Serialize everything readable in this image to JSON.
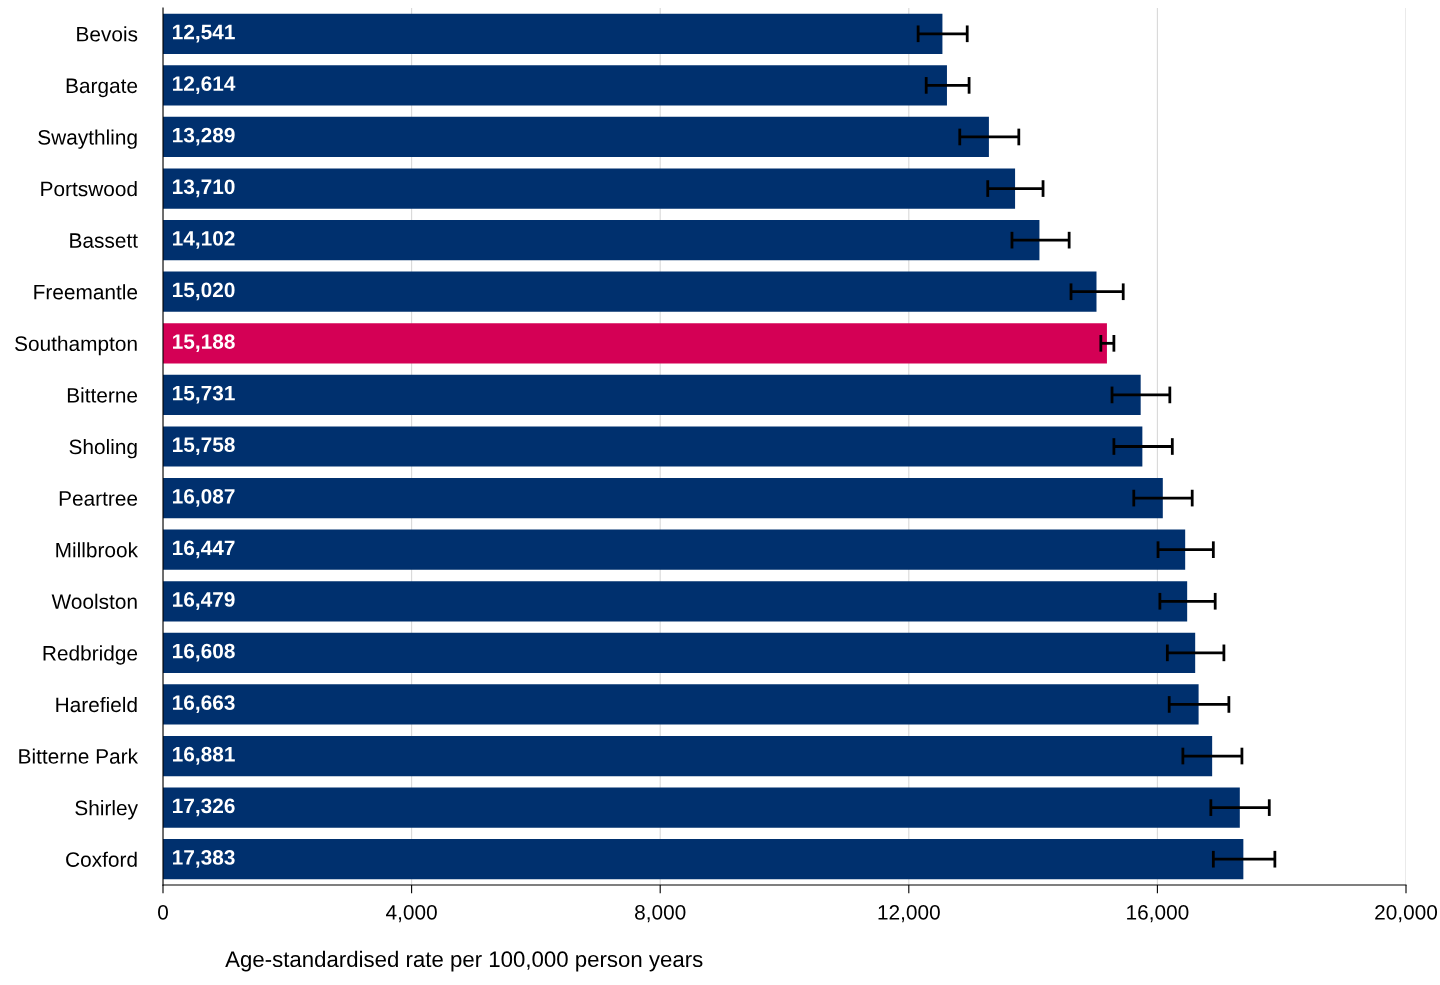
{
  "chart_data": {
    "type": "bar",
    "orientation": "horizontal",
    "xlabel": "Age-standardised rate per 100,000 person years",
    "categories": [
      "Bevois",
      "Bargate",
      "Swaythling",
      "Portswood",
      "Bassett",
      "Freemantle",
      "Southampton",
      "Bitterne",
      "Sholing",
      "Peartree",
      "Millbrook",
      "Woolston",
      "Redbridge",
      "Harefield",
      "Bitterne Park",
      "Shirley",
      "Coxford"
    ],
    "values": [
      12541,
      12614,
      13289,
      13710,
      14102,
      15020,
      15188,
      15731,
      15758,
      16087,
      16447,
      16479,
      16608,
      16663,
      16881,
      17326,
      17383
    ],
    "value_labels": [
      "12,541",
      "12,614",
      "13,289",
      "13,710",
      "14,102",
      "15,020",
      "15,188",
      "15,731",
      "15,758",
      "16,087",
      "16,447",
      "16,479",
      "16,608",
      "16,663",
      "16,881",
      "17,326",
      "17,383"
    ],
    "colors": [
      "#00306e",
      "#00306e",
      "#00306e",
      "#00306e",
      "#00306e",
      "#00306e",
      "#d40055",
      "#00306e",
      "#00306e",
      "#00306e",
      "#00306e",
      "#00306e",
      "#00306e",
      "#00306e",
      "#00306e",
      "#00306e",
      "#00306e"
    ],
    "errors": [
      [
        12150,
        12940
      ],
      [
        12280,
        12970
      ],
      [
        12820,
        13770
      ],
      [
        13270,
        14160
      ],
      [
        13660,
        14580
      ],
      [
        14610,
        15450
      ],
      [
        15090,
        15300
      ],
      [
        15270,
        16200
      ],
      [
        15300,
        16240
      ],
      [
        15620,
        16560
      ],
      [
        16010,
        16900
      ],
      [
        16040,
        16930
      ],
      [
        16160,
        17070
      ],
      [
        16190,
        17150
      ],
      [
        16410,
        17360
      ],
      [
        16860,
        17800
      ],
      [
        16900,
        17890
      ]
    ],
    "xlim": [
      0,
      20000
    ],
    "xticks": [
      {
        "value": 0,
        "label": "0"
      },
      {
        "value": 4000,
        "label": "4,000"
      },
      {
        "value": 8000,
        "label": "8,000"
      },
      {
        "value": 12000,
        "label": "12,000"
      },
      {
        "value": 16000,
        "label": "16,000"
      },
      {
        "value": 20000,
        "label": "20,000"
      }
    ],
    "grid": "x"
  }
}
